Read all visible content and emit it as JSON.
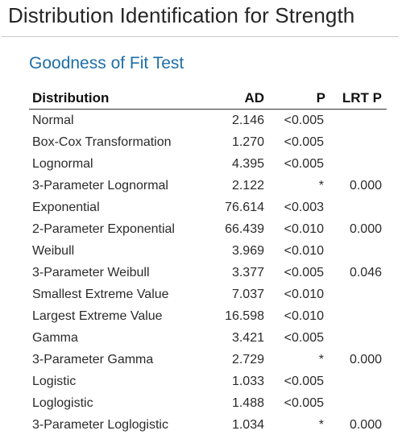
{
  "page_title": "Distribution Identification for Strength",
  "section_heading": "Goodness of Fit Test",
  "table": {
    "headers": {
      "distribution": "Distribution",
      "ad": "AD",
      "p": "P",
      "lrt_p": "LRT P"
    },
    "rows": [
      {
        "distribution": "Normal",
        "ad": "2.146",
        "p": "<0.005",
        "lrt_p": ""
      },
      {
        "distribution": "Box-Cox Transformation",
        "ad": "1.270",
        "p": "<0.005",
        "lrt_p": ""
      },
      {
        "distribution": "Lognormal",
        "ad": "4.395",
        "p": "<0.005",
        "lrt_p": ""
      },
      {
        "distribution": "3-Parameter Lognormal",
        "ad": "2.122",
        "p": "*",
        "lrt_p": "0.000"
      },
      {
        "distribution": "Exponential",
        "ad": "76.614",
        "p": "<0.003",
        "lrt_p": ""
      },
      {
        "distribution": "2-Parameter Exponential",
        "ad": "66.439",
        "p": "<0.010",
        "lrt_p": "0.000"
      },
      {
        "distribution": "Weibull",
        "ad": "3.969",
        "p": "<0.010",
        "lrt_p": ""
      },
      {
        "distribution": "3-Parameter Weibull",
        "ad": "3.377",
        "p": "<0.005",
        "lrt_p": "0.046"
      },
      {
        "distribution": "Smallest Extreme Value",
        "ad": "7.037",
        "p": "<0.010",
        "lrt_p": ""
      },
      {
        "distribution": "Largest Extreme Value",
        "ad": "16.598",
        "p": "<0.010",
        "lrt_p": ""
      },
      {
        "distribution": "Gamma",
        "ad": "3.421",
        "p": "<0.005",
        "lrt_p": ""
      },
      {
        "distribution": "3-Parameter Gamma",
        "ad": "2.729",
        "p": "*",
        "lrt_p": "0.000"
      },
      {
        "distribution": "Logistic",
        "ad": "1.033",
        "p": "<0.005",
        "lrt_p": ""
      },
      {
        "distribution": "Loglogistic",
        "ad": "1.488",
        "p": "<0.005",
        "lrt_p": ""
      },
      {
        "distribution": "3-Parameter Loglogistic",
        "ad": "1.034",
        "p": "*",
        "lrt_p": "0.000"
      }
    ]
  }
}
